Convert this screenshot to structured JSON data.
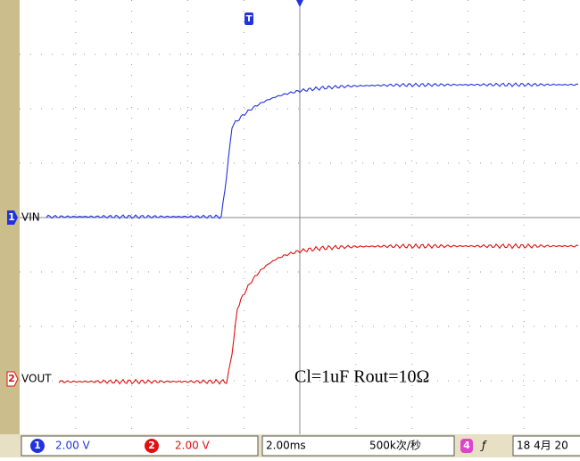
{
  "screen": {
    "ch1_label": "VIN",
    "ch2_label": "VOUT",
    "ch1_marker": "1",
    "ch2_marker": "2",
    "trigger_marker": "T",
    "annotation": "Cl=1uF Rout=10Ω"
  },
  "status_bar": {
    "ch1_num": "1",
    "ch1_scale": "2.00 V",
    "ch2_num": "2",
    "ch2_scale": "2.00 V",
    "timebase": "2.00ms",
    "sample_rate": "500k次/秒",
    "trig_source": "4",
    "trig_slope": "ƒ",
    "date": "18 4月 20"
  }
}
